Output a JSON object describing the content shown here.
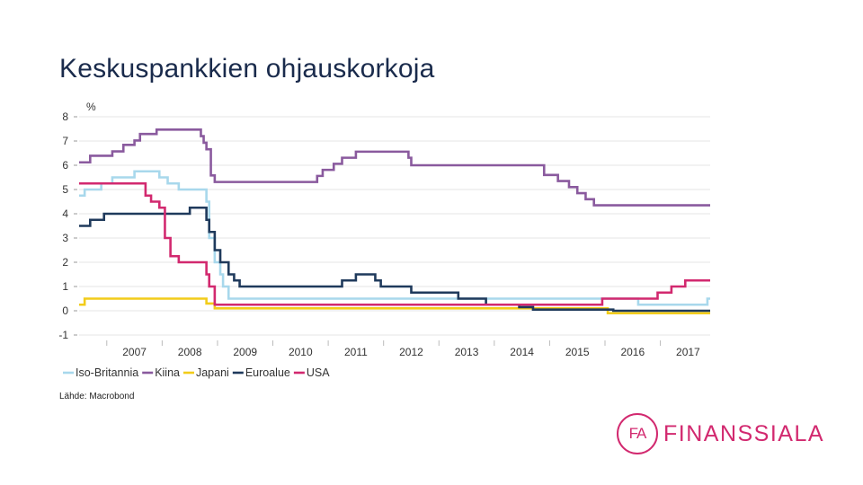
{
  "slide": {
    "title": "Keskuspankkien ohjauskorkoja",
    "source": "Lähde: Macrobond"
  },
  "logo": {
    "mark": "FA",
    "text": "FINANSSIALA",
    "color": "#d2296f"
  },
  "chart_data": {
    "type": "line",
    "ylabel": "%",
    "ylim": [
      -1,
      8
    ],
    "yticks": [
      -1,
      0,
      1,
      2,
      3,
      4,
      5,
      6,
      7,
      8
    ],
    "xlim": [
      2006.5,
      2017.9
    ],
    "xtick_labels": [
      "2007",
      "2008",
      "2009",
      "2010",
      "2011",
      "2012",
      "2013",
      "2014",
      "2015",
      "2016",
      "2017"
    ],
    "legend_position": "bottom-left",
    "grid": true,
    "series": [
      {
        "name": "Iso-Britannia",
        "color": "#a8d8ec",
        "steps": [
          [
            2006.5,
            4.75
          ],
          [
            2006.6,
            5.0
          ],
          [
            2006.9,
            5.25
          ],
          [
            2007.1,
            5.5
          ],
          [
            2007.5,
            5.75
          ],
          [
            2007.95,
            5.5
          ],
          [
            2008.1,
            5.25
          ],
          [
            2008.3,
            5.0
          ],
          [
            2008.8,
            4.5
          ],
          [
            2008.85,
            3.0
          ],
          [
            2008.95,
            2.0
          ],
          [
            2009.05,
            1.5
          ],
          [
            2009.1,
            1.0
          ],
          [
            2009.2,
            0.5
          ],
          [
            2016.6,
            0.25
          ],
          [
            2017.85,
            0.5
          ]
        ]
      },
      {
        "name": "Kiina",
        "color": "#8a5a9e",
        "steps": [
          [
            2006.5,
            6.12
          ],
          [
            2006.7,
            6.39
          ],
          [
            2006.9,
            6.39
          ],
          [
            2007.1,
            6.57
          ],
          [
            2007.3,
            6.84
          ],
          [
            2007.5,
            7.02
          ],
          [
            2007.6,
            7.29
          ],
          [
            2007.9,
            7.47
          ],
          [
            2008.7,
            7.2
          ],
          [
            2008.75,
            6.93
          ],
          [
            2008.8,
            6.66
          ],
          [
            2008.88,
            5.58
          ],
          [
            2008.95,
            5.31
          ],
          [
            2010.8,
            5.56
          ],
          [
            2010.9,
            5.81
          ],
          [
            2011.1,
            6.06
          ],
          [
            2011.25,
            6.31
          ],
          [
            2011.5,
            6.56
          ],
          [
            2012.45,
            6.31
          ],
          [
            2012.5,
            6.0
          ],
          [
            2014.9,
            5.6
          ],
          [
            2015.15,
            5.35
          ],
          [
            2015.35,
            5.1
          ],
          [
            2015.5,
            4.85
          ],
          [
            2015.65,
            4.6
          ],
          [
            2015.8,
            4.35
          ]
        ]
      },
      {
        "name": "Japani",
        "color": "#f2cc1a",
        "steps": [
          [
            2006.5,
            0.25
          ],
          [
            2006.6,
            0.5
          ],
          [
            2008.8,
            0.3
          ],
          [
            2008.95,
            0.1
          ],
          [
            2016.05,
            -0.1
          ]
        ]
      },
      {
        "name": "Euroalue",
        "color": "#1f3a5c",
        "steps": [
          [
            2006.5,
            3.5
          ],
          [
            2006.7,
            3.75
          ],
          [
            2006.95,
            4.0
          ],
          [
            2008.5,
            4.25
          ],
          [
            2008.8,
            3.75
          ],
          [
            2008.85,
            3.25
          ],
          [
            2008.95,
            2.5
          ],
          [
            2009.05,
            2.0
          ],
          [
            2009.2,
            1.5
          ],
          [
            2009.3,
            1.25
          ],
          [
            2009.4,
            1.0
          ],
          [
            2011.25,
            1.25
          ],
          [
            2011.5,
            1.5
          ],
          [
            2011.85,
            1.25
          ],
          [
            2011.95,
            1.0
          ],
          [
            2012.5,
            0.75
          ],
          [
            2013.35,
            0.5
          ],
          [
            2013.85,
            0.25
          ],
          [
            2014.45,
            0.15
          ],
          [
            2014.7,
            0.05
          ],
          [
            2016.15,
            0.0
          ]
        ]
      },
      {
        "name": "USA",
        "color": "#d2296f",
        "steps": [
          [
            2006.5,
            5.25
          ],
          [
            2007.7,
            4.75
          ],
          [
            2007.8,
            4.5
          ],
          [
            2007.95,
            4.25
          ],
          [
            2008.05,
            3.0
          ],
          [
            2008.15,
            2.25
          ],
          [
            2008.3,
            2.0
          ],
          [
            2008.8,
            1.5
          ],
          [
            2008.85,
            1.0
          ],
          [
            2008.95,
            0.25
          ],
          [
            2015.95,
            0.5
          ],
          [
            2016.95,
            0.75
          ],
          [
            2017.2,
            1.0
          ],
          [
            2017.45,
            1.25
          ]
        ]
      }
    ]
  }
}
